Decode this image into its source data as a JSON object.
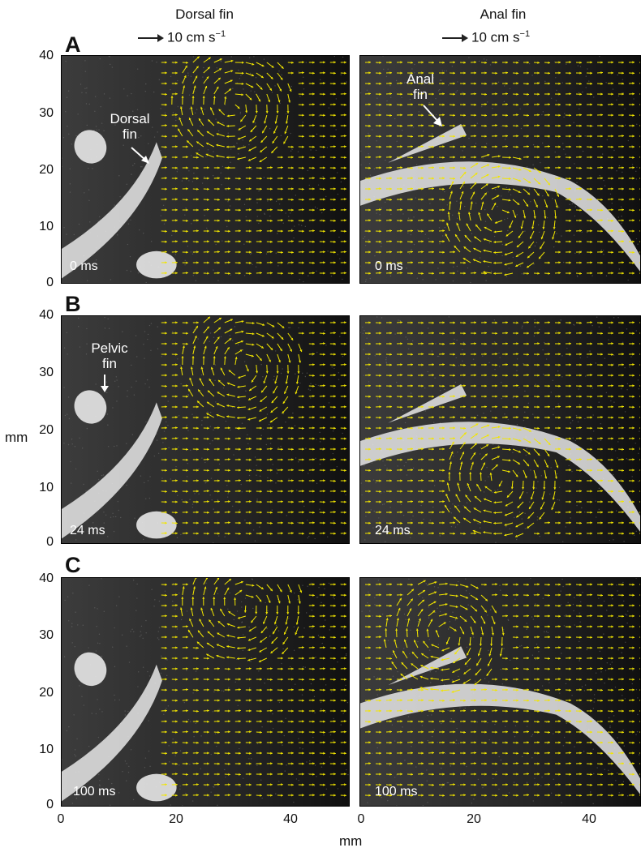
{
  "columns": {
    "dorsal": {
      "title": "Dorsal fin",
      "scale_value": "10 cm s",
      "scale_exp": "−1"
    },
    "anal": {
      "title": "Anal fin",
      "scale_value": "10 cm s",
      "scale_exp": "−1"
    }
  },
  "rows": [
    {
      "letter": "A",
      "time_left": "0 ms",
      "time_right": "0 ms"
    },
    {
      "letter": "B",
      "time_left": "24 ms",
      "time_right": "24 ms"
    },
    {
      "letter": "C",
      "time_left": "100 ms",
      "time_right": "100 ms"
    }
  ],
  "annotations": {
    "dorsal_fin": "Dorsal\nfin",
    "anal_fin": "Anal\nfin",
    "pelvic_fin": "Pelvic\nfin"
  },
  "axes": {
    "y_label": "mm",
    "x_label": "mm",
    "y_ticks": [
      "40",
      "30",
      "20",
      "10",
      "0"
    ],
    "x_ticks": [
      "0",
      "20",
      "40"
    ]
  },
  "colors": {
    "vectors": "#f2e600",
    "background": "#1a1a1a",
    "fish": "#e8e8e8"
  }
}
